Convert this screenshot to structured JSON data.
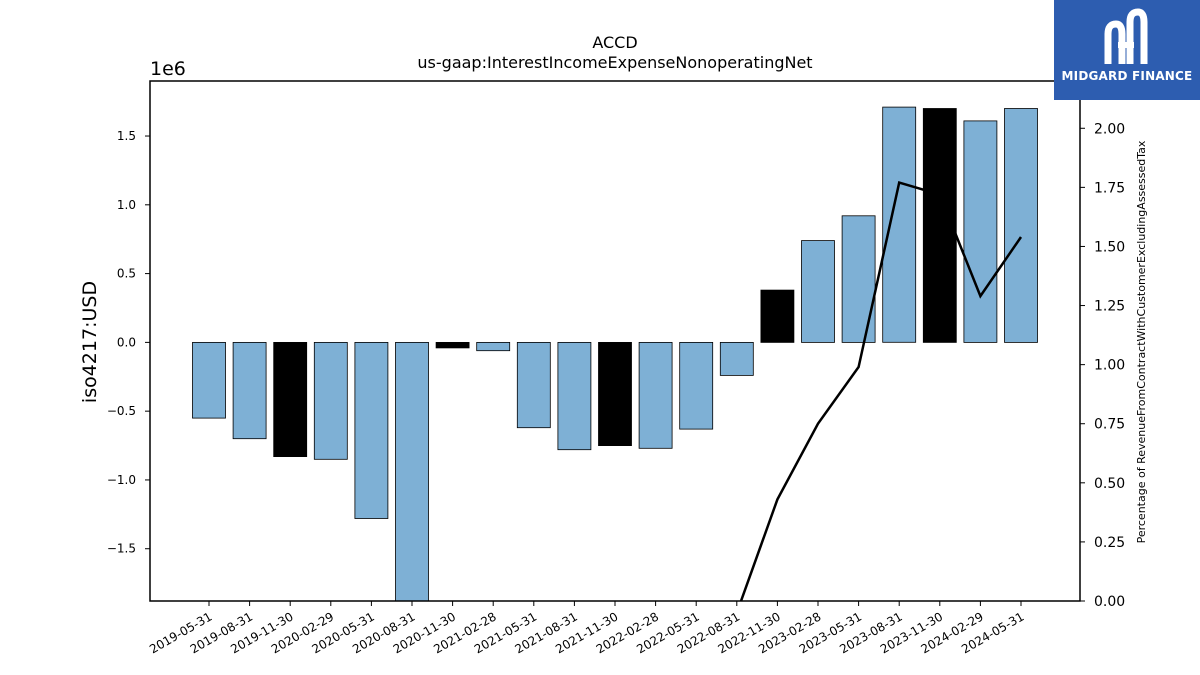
{
  "chart_data": {
    "type": "bar",
    "title": "ACCD",
    "subtitle": "us-gaap:InterestIncomeExpenseNonoperatingNet",
    "ylabel": "iso4217:USD",
    "y2label": "Percentage of RevenueFromContractWithCustomerExcludingAssessedTax",
    "y_offset_label": "1e6",
    "ylim": [
      -1.88,
      1.9
    ],
    "y2lim": [
      0.0,
      2.2
    ],
    "yticks": [
      -1.5,
      -1.0,
      -0.5,
      0.0,
      0.5,
      1.0,
      1.5
    ],
    "y2ticks": [
      0.0,
      0.25,
      0.5,
      0.75,
      1.0,
      1.25,
      1.5,
      1.75,
      2.0
    ],
    "categories": [
      "2019-05-31",
      "2019-08-31",
      "2019-11-30",
      "2020-02-29",
      "2020-05-31",
      "2020-08-31",
      "2020-11-30",
      "2021-02-28",
      "2021-05-31",
      "2021-08-31",
      "2021-11-30",
      "2022-02-28",
      "2022-05-31",
      "2022-08-31",
      "2022-11-30",
      "2023-02-28",
      "2023-05-31",
      "2023-08-31",
      "2023-11-30",
      "2024-02-29",
      "2024-05-31"
    ],
    "values": [
      -0.55,
      -0.7,
      -0.83,
      -0.85,
      -1.28,
      -1.9,
      -0.04,
      -0.06,
      -0.62,
      -0.78,
      -0.75,
      -0.77,
      -0.63,
      -0.24,
      0.38,
      0.74,
      0.92,
      1.71,
      1.7,
      1.61,
      1.7
    ],
    "bar_colors": [
      "#7eb0d5",
      "#7eb0d5",
      "#000000",
      "#7eb0d5",
      "#7eb0d5",
      "#7eb0d5",
      "#000000",
      "#7eb0d5",
      "#7eb0d5",
      "#7eb0d5",
      "#000000",
      "#7eb0d5",
      "#7eb0d5",
      "#7eb0d5",
      "#000000",
      "#7eb0d5",
      "#7eb0d5",
      "#7eb0d5",
      "#000000",
      "#7eb0d5",
      "#7eb0d5"
    ],
    "line_series": {
      "axis": "right",
      "color": "#000000",
      "values": [
        null,
        null,
        null,
        null,
        null,
        null,
        null,
        null,
        null,
        null,
        null,
        null,
        null,
        -0.05,
        0.43,
        0.75,
        0.99,
        1.77,
        1.72,
        1.29,
        1.54
      ]
    },
    "grid": false
  },
  "logo": {
    "text": "MIDGARD FINANCE"
  }
}
